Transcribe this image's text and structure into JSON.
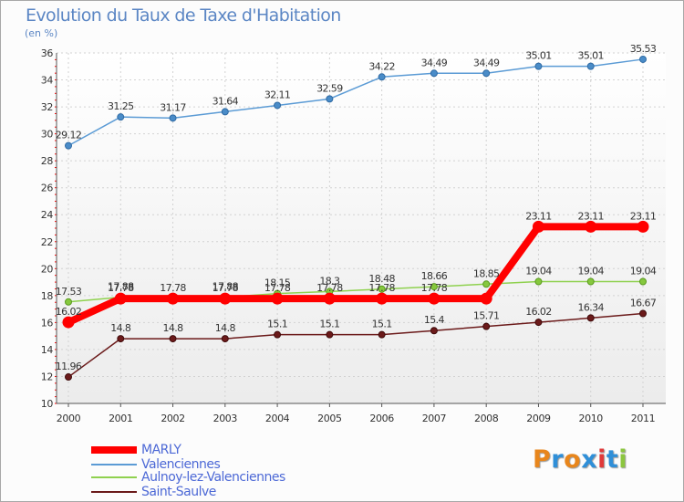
{
  "title": "Evolution du Taux de Taxe d'Habitation",
  "subtitle": "(en %)",
  "brand": {
    "letters": [
      "P",
      "r",
      "o",
      "x",
      "i",
      "t",
      "i"
    ],
    "colors": [
      "#e8861c",
      "#2f8fd8",
      "#e8861c",
      "#2f8fd8",
      "#e03a3a",
      "#2f8fd8",
      "#8cc63f"
    ]
  },
  "chart_data": {
    "type": "line",
    "x": [
      "2000",
      "2001",
      "2002",
      "2003",
      "2004",
      "2005",
      "2006",
      "2007",
      "2008",
      "2009",
      "2010",
      "2011"
    ],
    "ylim": [
      10,
      36
    ],
    "yticks": [
      "10",
      "12",
      "14",
      "16",
      "18",
      "20",
      "22",
      "24",
      "26",
      "28",
      "30",
      "32",
      "34",
      "36"
    ],
    "grid": true,
    "legend_position": "bottom-left",
    "series": [
      {
        "name": "MARLY",
        "color": "#ff0000",
        "values": [
          16.02,
          17.78,
          17.78,
          17.78,
          17.78,
          17.78,
          17.78,
          17.78,
          17.78,
          23.11,
          23.11,
          23.11
        ],
        "labels": [
          "16.02",
          "17.78",
          "17.78",
          "17.78",
          "17.78",
          "17.78",
          "17.78",
          "17.78",
          "",
          "23.11",
          "23.11",
          "23.11"
        ]
      },
      {
        "name": "Valenciennes",
        "color": "#5b9bd5",
        "values": [
          29.12,
          31.25,
          31.17,
          31.64,
          32.11,
          32.59,
          34.22,
          34.49,
          34.49,
          35.01,
          35.01,
          35.53
        ],
        "labels": [
          "29.12",
          "31.25",
          "31.17",
          "31.64",
          "32.11",
          "32.59",
          "34.22",
          "34.49",
          "34.49",
          "35.01",
          "35.01",
          "35.53"
        ]
      },
      {
        "name": "Aulnoy-lez-Valenciennes",
        "color": "#8fd14f",
        "values": [
          17.53,
          17.88,
          17.7,
          17.88,
          18.15,
          18.3,
          18.48,
          18.66,
          18.85,
          19.04,
          19.04,
          19.04
        ],
        "labels": [
          "17.53",
          "17.88",
          "",
          "17.88",
          "18.15",
          "18.3",
          "18.48",
          "18.66",
          "18.85",
          "19.04",
          "19.04",
          "19.04"
        ]
      },
      {
        "name": "Saint-Saulve",
        "color": "#6b1a1a",
        "values": [
          11.96,
          14.8,
          14.8,
          14.8,
          15.1,
          15.1,
          15.1,
          15.4,
          15.71,
          16.02,
          16.34,
          16.67
        ],
        "labels": [
          "11.96",
          "14.8",
          "14.8",
          "14.8",
          "15.1",
          "15.1",
          "15.1",
          "15.4",
          "15.71",
          "16.02",
          "16.34",
          "16.67"
        ]
      }
    ]
  }
}
